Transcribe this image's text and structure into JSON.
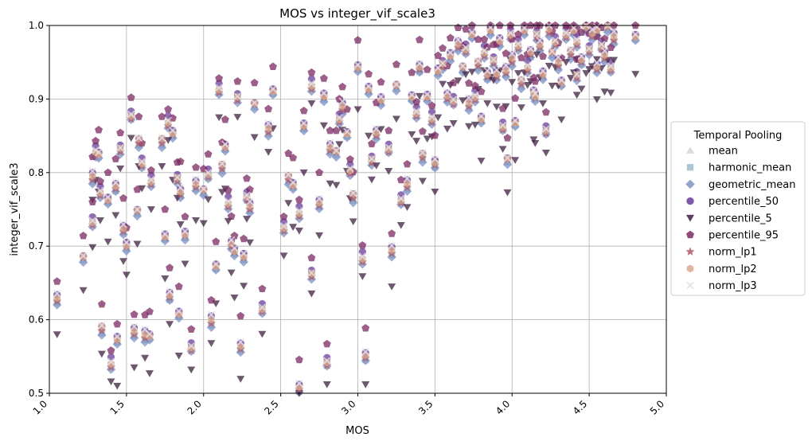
{
  "chart_data": {
    "type": "scatter",
    "title": "MOS vs integer_vif_scale3",
    "xlabel": "MOS",
    "ylabel": "integer_vif_scale3",
    "xlim": [
      1.0,
      5.0
    ],
    "ylim": [
      0.5,
      1.0
    ],
    "xticks": [
      "1.0",
      "1.5",
      "2.0",
      "2.5",
      "3.0",
      "3.5",
      "4.0",
      "4.5",
      "5.0"
    ],
    "yticks": [
      "0.5",
      "0.6",
      "0.7",
      "0.8",
      "0.9",
      "1.0"
    ],
    "grid": true,
    "legend": {
      "title": "Temporal Pooling",
      "placement": "right-outside"
    },
    "base_points": [
      [
        1.05,
        0.625
      ],
      [
        1.22,
        0.682
      ],
      [
        1.28,
        0.73
      ],
      [
        1.28,
        0.79
      ],
      [
        1.32,
        0.822
      ],
      [
        1.33,
        0.77
      ],
      [
        1.34,
        0.585
      ],
      [
        1.38,
        0.76
      ],
      [
        1.4,
        0.537
      ],
      [
        1.43,
        0.778
      ],
      [
        1.44,
        0.57
      ],
      [
        1.46,
        0.83
      ],
      [
        1.48,
        0.72
      ],
      [
        1.5,
        0.697
      ],
      [
        1.53,
        0.875
      ],
      [
        1.55,
        0.58
      ],
      [
        1.57,
        0.745
      ],
      [
        1.6,
        0.81
      ],
      [
        1.62,
        0.575
      ],
      [
        1.65,
        0.575
      ],
      [
        1.66,
        0.785
      ],
      [
        1.73,
        0.84
      ],
      [
        1.75,
        0.71
      ],
      [
        1.77,
        0.865
      ],
      [
        1.78,
        0.63
      ],
      [
        1.8,
        0.85
      ],
      [
        1.83,
        0.79
      ],
      [
        1.85,
        0.77
      ],
      [
        1.88,
        0.712
      ],
      [
        1.92,
        0.56
      ],
      [
        1.95,
        0.78
      ],
      [
        2.0,
        0.773
      ],
      [
        2.03,
        0.795
      ],
      [
        2.05,
        0.595
      ],
      [
        2.08,
        0.67
      ],
      [
        2.1,
        0.91
      ],
      [
        2.12,
        0.805
      ],
      [
        2.14,
        0.832
      ],
      [
        2.16,
        0.755
      ],
      [
        2.18,
        0.7
      ],
      [
        2.2,
        0.69
      ],
      [
        2.22,
        0.9
      ],
      [
        2.24,
        0.56
      ],
      [
        2.26,
        0.682
      ],
      [
        2.28,
        0.765
      ],
      [
        2.3,
        0.75
      ],
      [
        2.33,
        0.89
      ],
      [
        2.38,
        0.612
      ],
      [
        2.42,
        0.855
      ],
      [
        2.45,
        0.908
      ],
      [
        2.52,
        0.722
      ],
      [
        2.55,
        0.79
      ],
      [
        2.58,
        0.78
      ],
      [
        2.62,
        0.742
      ],
      [
        2.62,
        0.505
      ],
      [
        2.65,
        0.86
      ],
      [
        2.7,
        0.66
      ],
      [
        2.75,
        0.755
      ],
      [
        2.78,
        0.9
      ],
      [
        2.8,
        0.54
      ],
      [
        2.82,
        0.83
      ],
      [
        2.86,
        0.825
      ],
      [
        2.88,
        0.87
      ],
      [
        2.9,
        0.885
      ],
      [
        2.93,
        0.85
      ],
      [
        2.95,
        0.8
      ],
      [
        2.97,
        0.765
      ],
      [
        3.0,
        0.94
      ],
      [
        3.03,
        0.68
      ],
      [
        3.05,
        0.548
      ],
      [
        3.07,
        0.91
      ],
      [
        3.09,
        0.815
      ],
      [
        3.12,
        0.85
      ],
      [
        3.15,
        0.895
      ],
      [
        3.2,
        0.83
      ],
      [
        3.22,
        0.69
      ],
      [
        3.25,
        0.915
      ],
      [
        3.28,
        0.76
      ],
      [
        3.32,
        0.78
      ],
      [
        3.35,
        0.9
      ],
      [
        3.38,
        0.878
      ],
      [
        3.42,
        0.82
      ],
      [
        3.45,
        0.9
      ],
      [
        3.48,
        0.87
      ],
      [
        3.5,
        0.81
      ],
      [
        3.52,
        0.935
      ],
      [
        3.55,
        0.945
      ],
      [
        3.58,
        0.9
      ],
      [
        3.6,
        0.955
      ],
      [
        3.62,
        0.895
      ],
      [
        3.65,
        0.97
      ],
      [
        3.68,
        0.94
      ],
      [
        3.7,
        0.965
      ],
      [
        3.72,
        0.89
      ],
      [
        3.74,
        0.985
      ],
      [
        3.76,
        0.9
      ],
      [
        3.78,
        0.945
      ],
      [
        3.8,
        0.87
      ],
      [
        3.82,
        0.96
      ],
      [
        3.84,
        0.93
      ],
      [
        3.86,
        0.99
      ],
      [
        3.88,
        0.95
      ],
      [
        3.9,
        0.93
      ],
      [
        3.92,
        0.975
      ],
      [
        3.94,
        0.86
      ],
      [
        3.96,
        0.935
      ],
      [
        3.97,
        0.815
      ],
      [
        3.99,
        0.985
      ],
      [
        4.0,
        0.95
      ],
      [
        4.02,
        0.865
      ],
      [
        4.04,
        0.97
      ],
      [
        4.06,
        0.92
      ],
      [
        4.08,
        0.99
      ],
      [
        4.1,
        0.94
      ],
      [
        4.12,
        0.96
      ],
      [
        4.14,
        0.905
      ],
      [
        4.16,
        0.985
      ],
      [
        4.18,
        0.97
      ],
      [
        4.2,
        0.93
      ],
      [
        4.22,
        0.855
      ],
      [
        4.24,
        0.99
      ],
      [
        4.26,
        0.96
      ],
      [
        4.28,
        0.975
      ],
      [
        4.3,
        0.945
      ],
      [
        4.32,
        0.92
      ],
      [
        4.35,
        0.985
      ],
      [
        4.38,
        0.96
      ],
      [
        4.4,
        0.99
      ],
      [
        4.42,
        0.975
      ],
      [
        4.45,
        0.95
      ],
      [
        4.48,
        0.995
      ],
      [
        4.5,
        0.965
      ],
      [
        4.52,
        0.985
      ],
      [
        4.55,
        0.99
      ],
      [
        4.58,
        0.97
      ],
      [
        4.6,
        0.955
      ],
      [
        4.62,
        0.995
      ],
      [
        4.64,
        0.94
      ],
      [
        4.66,
        0.98
      ],
      [
        4.8,
        0.982
      ],
      [
        1.3,
        0.825
      ],
      [
        1.58,
        0.84
      ],
      [
        1.84,
        0.605
      ],
      [
        2.7,
        0.915
      ],
      [
        3.4,
        0.94
      ],
      [
        4.15,
        0.9
      ],
      [
        4.42,
        0.93
      ],
      [
        4.55,
        0.94
      ]
    ],
    "series": [
      {
        "name": "mean",
        "color": "#d8d2d6",
        "marker": "triangle-up",
        "offsets": [
          0.004,
          0.002,
          -0.003
        ]
      },
      {
        "name": "harmonic_mean",
        "color": "#9fbccb",
        "marker": "square",
        "offsets": [
          -0.003,
          -0.001,
          0.002
        ]
      },
      {
        "name": "geometric_mean",
        "color": "#7f93c5",
        "marker": "diamond",
        "offsets": [
          -0.006,
          -0.004,
          -0.005
        ]
      },
      {
        "name": "percentile_50",
        "color": "#6a3d9a",
        "marker": "circle",
        "offsets": [
          0.01,
          0.008,
          0.012
        ]
      },
      {
        "name": "percentile_5",
        "color": "#3d2040",
        "marker": "triangle-down",
        "offsets": [
          -0.045,
          -0.06,
          -0.035
        ]
      },
      {
        "name": "percentile_95",
        "color": "#7a2a62",
        "marker": "pentagon",
        "offsets": [
          0.045,
          0.04,
          0.03
        ]
      },
      {
        "name": "norm_lp1",
        "color": "#b35a66",
        "marker": "star",
        "offsets": [
          0.0,
          0.003,
          -0.002
        ]
      },
      {
        "name": "norm_lp2",
        "color": "#d9a98e",
        "marker": "hexagon",
        "offsets": [
          0.006,
          0.004,
          0.003
        ]
      },
      {
        "name": "norm_lp3",
        "color": "#e3e0e6",
        "marker": "x",
        "offsets": [
          0.012,
          0.008,
          0.006
        ]
      }
    ]
  }
}
